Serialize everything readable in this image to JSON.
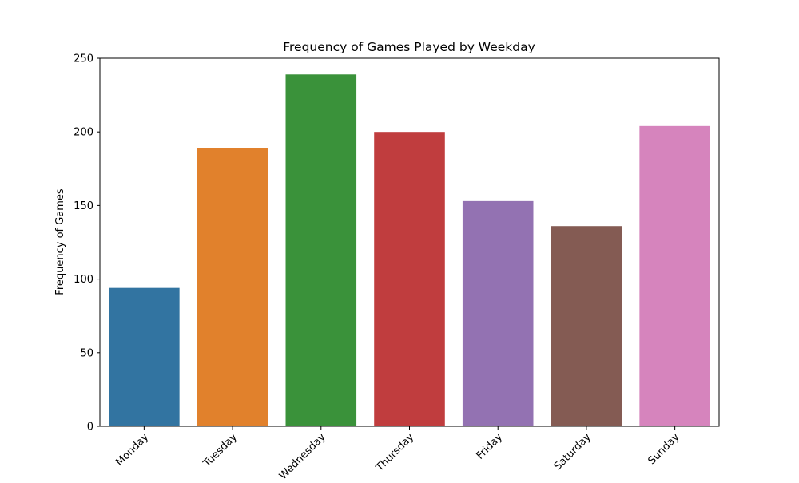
{
  "chart_data": {
    "type": "bar",
    "title": "Frequency of Games Played by Weekday",
    "xlabel": "",
    "ylabel": "Frequency of Games",
    "categories": [
      "Monday",
      "Tuesday",
      "Wednesday",
      "Thursday",
      "Friday",
      "Saturday",
      "Sunday"
    ],
    "values": [
      94,
      189,
      239,
      200,
      153,
      136,
      204
    ],
    "colors": [
      "#3274a1",
      "#e1812c",
      "#3a923a",
      "#c03d3e",
      "#9372b2",
      "#845b53",
      "#d684bd"
    ],
    "ylim": [
      0,
      250
    ],
    "yticks": [
      0,
      50,
      100,
      150,
      200,
      250
    ],
    "grid": false,
    "legend": "none"
  }
}
